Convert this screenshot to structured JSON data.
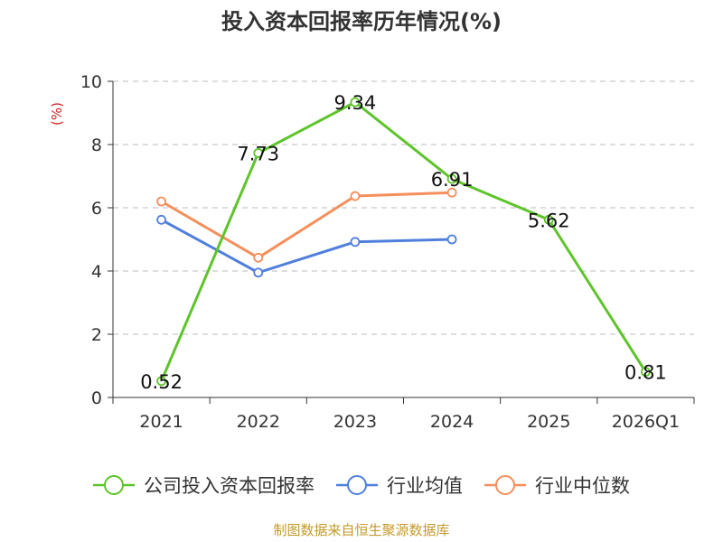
{
  "chart_data": {
    "type": "line",
    "title": "投入资本回报率历年情况(%)",
    "ylabel": "(%)",
    "xlabel": "",
    "categories": [
      "2021",
      "2022",
      "2023",
      "2024",
      "2025",
      "2026Q1"
    ],
    "ylim": [
      0,
      10
    ],
    "yticks": [
      "0",
      "2",
      "4",
      "6",
      "8",
      "10"
    ],
    "grid": true,
    "legend_position": "bottom",
    "series": [
      {
        "name": "公司投入资本回报率",
        "color": "#5ec42b",
        "values": [
          0.52,
          7.73,
          9.34,
          6.91,
          5.62,
          0.81
        ],
        "labels": [
          "0.52",
          "7.73",
          "9.34",
          "6.91",
          "5.62",
          "0.81"
        ]
      },
      {
        "name": "行业均值",
        "color": "#4f7fdc",
        "values": [
          5.62,
          3.95,
          4.92,
          5.0,
          null,
          null
        ],
        "labels": []
      },
      {
        "name": "行业中位数",
        "color": "#f58f5b",
        "values": [
          6.2,
          4.42,
          6.37,
          6.48,
          null,
          null
        ],
        "labels": []
      }
    ]
  },
  "source_note": "制图数据来自恒生聚源数据库",
  "colors": {
    "title": "#333333",
    "ylabel": "#d12020",
    "source": "#c39a2a",
    "grid": "#bbbbbb",
    "axis": "#333333"
  }
}
